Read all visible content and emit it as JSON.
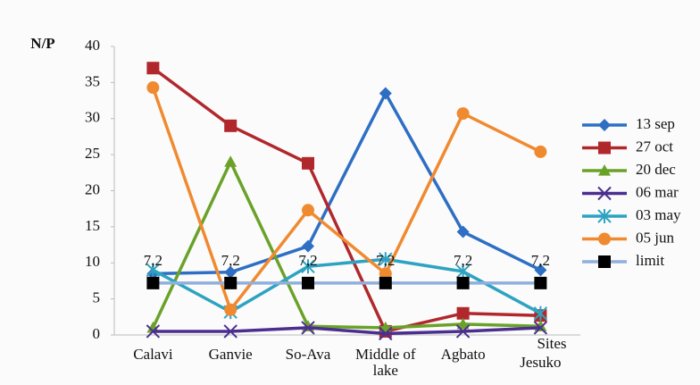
{
  "chart_data": {
    "type": "line",
    "y_label": "N/P",
    "x_label": "Sites",
    "categories": [
      "Calavi",
      "Ganvie",
      "So-Ava",
      "Middle of lake",
      "Agbato",
      "Jesuko"
    ],
    "ylim": [
      0,
      40
    ],
    "yticks": [
      0,
      5,
      10,
      15,
      20,
      25,
      30,
      35,
      40
    ],
    "legend": "right",
    "series": [
      {
        "name": "13 sep",
        "color": "#2e6fc4",
        "marker": "diamond",
        "values": [
          8.5,
          8.7,
          12.3,
          33.5,
          14.3,
          9
        ]
      },
      {
        "name": "27 oct",
        "color": "#b0282c",
        "marker": "square",
        "values": [
          37,
          29,
          23.8,
          0.5,
          3,
          2.7
        ]
      },
      {
        "name": "20 dec",
        "color": "#6aa229",
        "marker": "triangle",
        "values": [
          1,
          24,
          1.2,
          1,
          1.5,
          1.2
        ]
      },
      {
        "name": "06 mar",
        "color": "#4b2e90",
        "marker": "x",
        "values": [
          0.5,
          0.5,
          1,
          0.2,
          0.5,
          1
        ]
      },
      {
        "name": "03 may",
        "color": "#2ea3c1",
        "marker": "asterisk",
        "values": [
          9,
          3.2,
          9.5,
          10.5,
          8.8,
          3
        ]
      },
      {
        "name": "05 jun",
        "color": "#f08a30",
        "marker": "circle",
        "values": [
          34.3,
          3.5,
          17.3,
          8.5,
          30.7,
          25.4
        ]
      },
      {
        "name": "limit",
        "color": "#8fb0dd",
        "marker": "square",
        "marker_color": "#000000",
        "values": [
          7.2,
          7.2,
          7.2,
          7.2,
          7.2,
          7.2
        ],
        "value_labels": [
          "7,2",
          "7,2",
          "7,2",
          "7,2",
          "7,2",
          "7,2"
        ]
      }
    ]
  }
}
